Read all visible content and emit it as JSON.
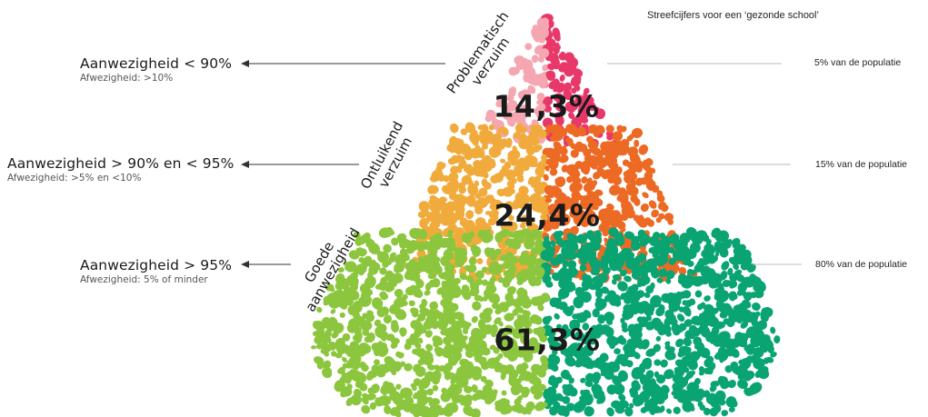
{
  "targets_title": "Streefcijfers voor een ‘gezonde school’",
  "tiers": [
    {
      "name_line1": "Problematisch",
      "name_line2": "verzuim",
      "attendance": "Aanwezigheid < 90%",
      "absence": "Afwezigheid: >10%",
      "percentage": "14,3%",
      "target": "5% van de populatie",
      "color_left": "#f4a7b0",
      "color_right": "#e8386a"
    },
    {
      "name_line1": "Ontluikend",
      "name_line2": "verzuim",
      "attendance": "Aanwezigheid > 90% en < 95%",
      "absence": "Afwezigheid: >5% en <10%",
      "percentage": "24,4%",
      "target": "15% van de populatie",
      "color_left": "#f0ab3c",
      "color_right": "#ec6a24"
    },
    {
      "name_line1": "Goede",
      "name_line2": "aanwezigheid",
      "attendance": "Aanwezigheid > 95%",
      "absence": "Afwezigheid: 5% of minder",
      "percentage": "61,3%",
      "target": "80% van de populatie",
      "color_left": "#8cc63e",
      "color_right": "#0aa472"
    }
  ]
}
